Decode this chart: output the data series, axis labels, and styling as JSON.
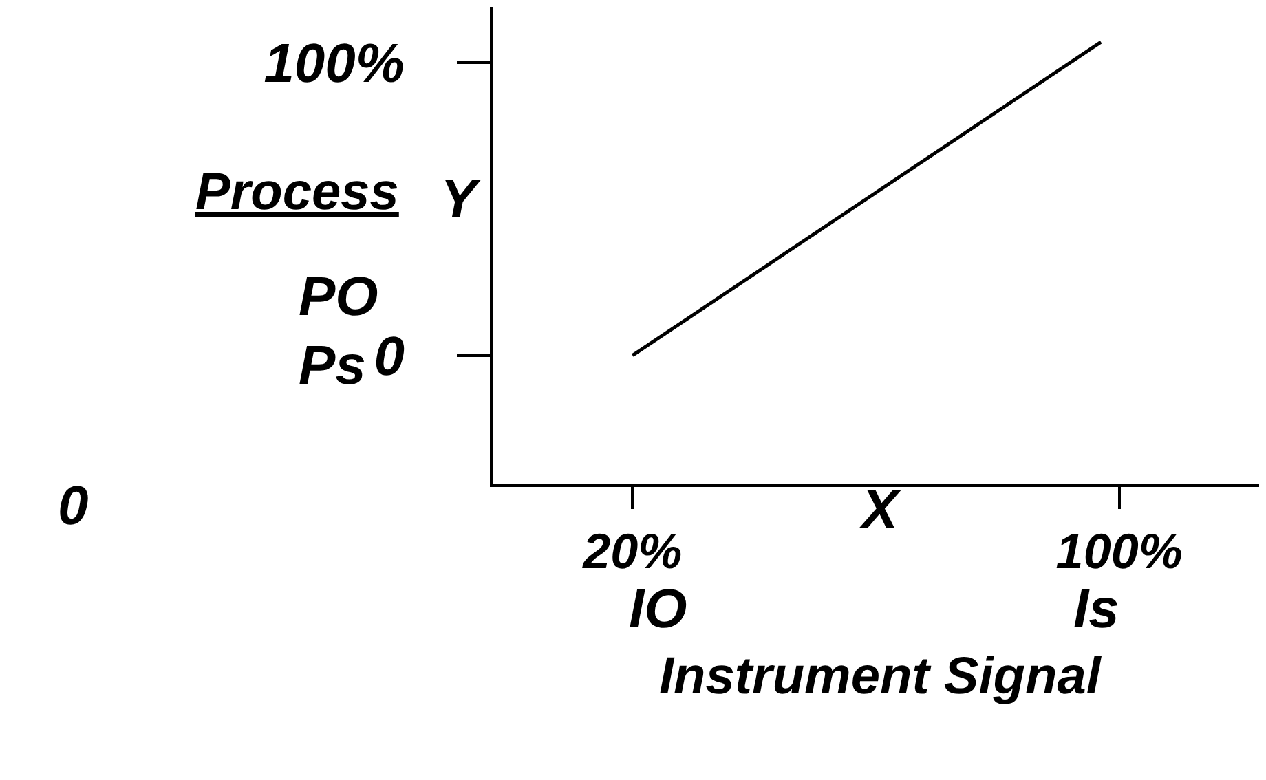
{
  "chart_data": {
    "type": "line",
    "xlabel": "Instrument Signal",
    "ylabel": "Process",
    "x": [
      20,
      97
    ],
    "series": [
      {
        "color": "#000000",
        "values": [
          0,
          107
        ]
      }
    ],
    "xlim": [
      -3,
      123
    ],
    "ylim": [
      -44,
      119
    ],
    "xticks": [
      {
        "value": 20,
        "label": "20%"
      },
      {
        "value": 100,
        "label": "100%"
      }
    ],
    "yticks": [
      0,
      {
        "value": 100,
        "label": "100%"
      }
    ],
    "annotations": [
      "0",
      "X",
      "IO",
      "Is",
      "Y",
      "PO",
      "Ps"
    ],
    "marker": "none",
    "line_style": "solid"
  }
}
